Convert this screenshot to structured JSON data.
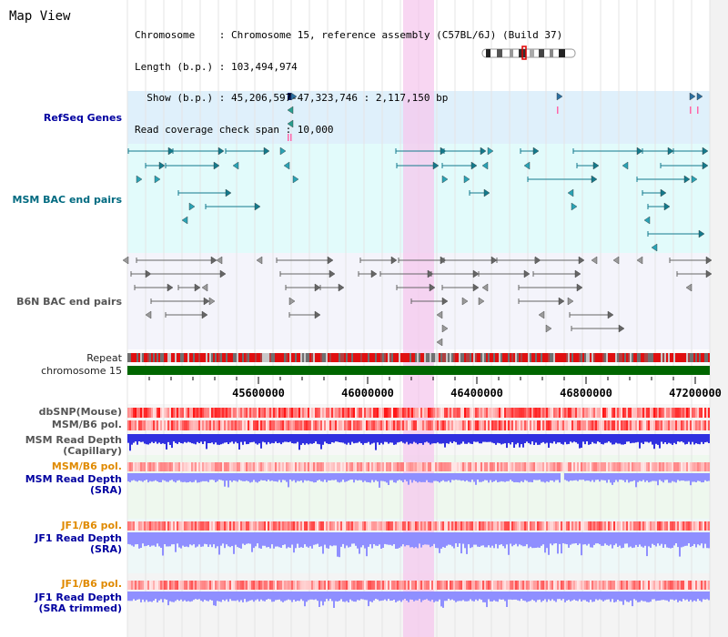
{
  "title": "Map View",
  "info": {
    "lines": [
      "Chromosome    : Chromosome 15, reference assembly (C57BL/6J) (Build 37)",
      "Length (b.p.) : 103,494,974",
      "  Show (b.p.) : 45,206,597-47,323,746 : 2,117,150 bp",
      "Read coverage check span : 10,000"
    ]
  },
  "tracks": {
    "refseq": "RefSeq Genes",
    "msm_bac": "MSM BAC end pairs",
    "b6n_bac": "B6N BAC end pairs",
    "repeat": "Repeat",
    "chromosome": "chromosome 15",
    "dbsnp": "dbSNP(Mouse)",
    "msm_b6_pol": "MSM/B6 pol.",
    "msm_depth_cap": "MSM Read Depth\n(Capillary)",
    "msm_b6_pol2": "MSM/B6 pol.",
    "msm_depth_sra": "MSM Read Depth\n(SRA)",
    "jf1_pol": "JF1/B6 pol.",
    "jf1_depth_sra": "JF1 Read Depth\n(SRA)",
    "jf1_pol2": "JF1/B6 pol.",
    "jf1_depth_trim": "JF1 Read Depth\n(SRA trimmed)"
  },
  "axis": {
    "ticks": [
      "45600000",
      "46000000",
      "46400000",
      "46800000",
      "47200000"
    ]
  },
  "colors": {
    "refseq_bg": "#dff0fb",
    "msm_bg": "#e2fbfb",
    "b6n_bg": "#f4f4fb",
    "highlight": "#f5c8ee",
    "chrom": "#006600",
    "depth_blue": "#3030e0",
    "depth_light": "#8f8fff"
  }
}
